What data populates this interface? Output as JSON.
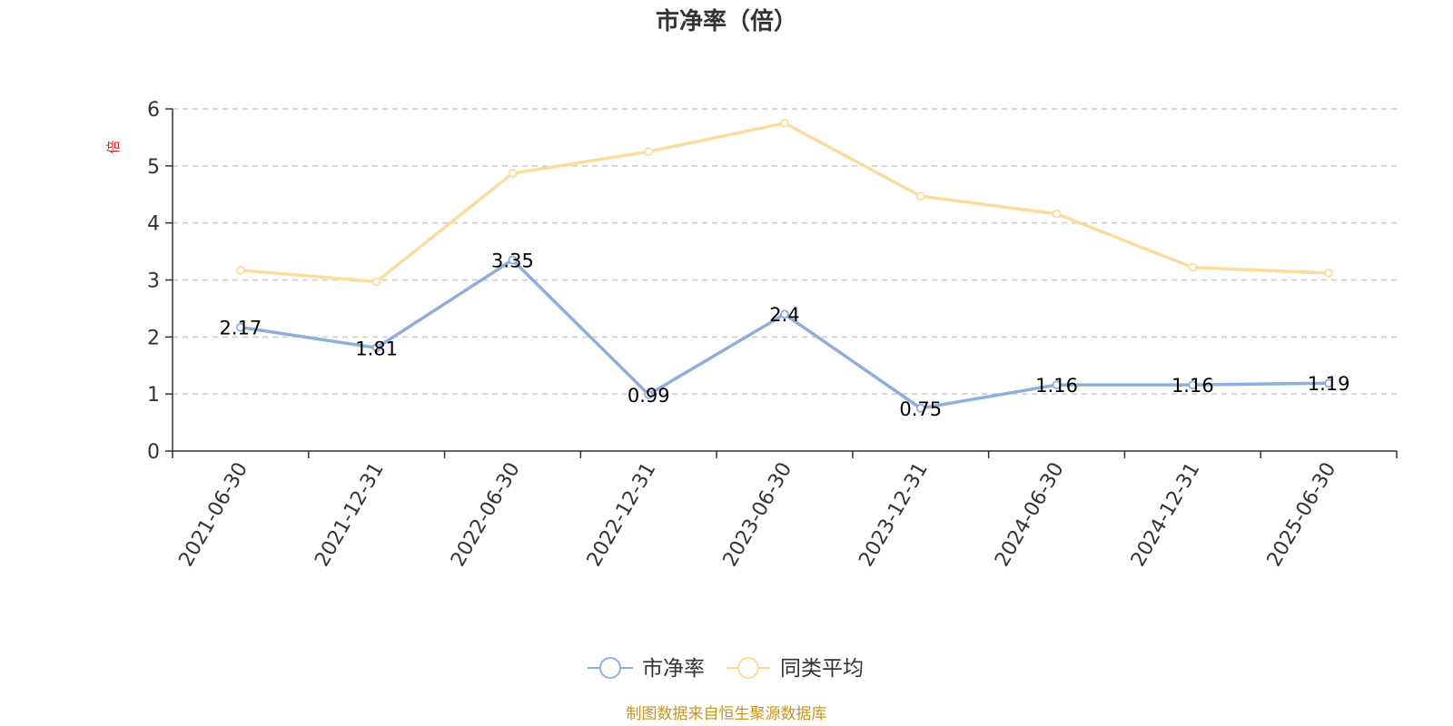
{
  "chart_data": {
    "type": "line",
    "title": "市净率（倍）",
    "ylabel": "倍",
    "xlabel": "",
    "ylim": [
      0,
      6
    ],
    "yticks": [
      0,
      1,
      2,
      3,
      4,
      5,
      6
    ],
    "grid": true,
    "legend_position": "bottom",
    "categories": [
      "2021-06-30",
      "2021-12-31",
      "2022-06-30",
      "2022-12-31",
      "2023-06-30",
      "2023-12-31",
      "2024-06-30",
      "2024-12-31",
      "2025-06-30"
    ],
    "series": [
      {
        "name": "市净率",
        "color": "#8eaedb",
        "values": [
          2.17,
          1.81,
          3.35,
          0.99,
          2.4,
          0.75,
          1.16,
          1.16,
          1.19
        ],
        "labels": [
          "2.17",
          "1.81",
          "3.35",
          "0.99",
          "2.4",
          "0.75",
          "1.16",
          "1.16",
          "1.19"
        ]
      },
      {
        "name": "同类平均",
        "color": "#fddb9c",
        "values": [
          3.17,
          2.97,
          4.87,
          5.25,
          5.75,
          4.47,
          4.16,
          3.22,
          3.12
        ]
      }
    ]
  },
  "source_note": "制图数据来自恒生聚源数据库",
  "colors": {
    "axis": "#333333",
    "grid": "#cccccc",
    "ylabel": "#e02020",
    "source": "#c8961e"
  }
}
